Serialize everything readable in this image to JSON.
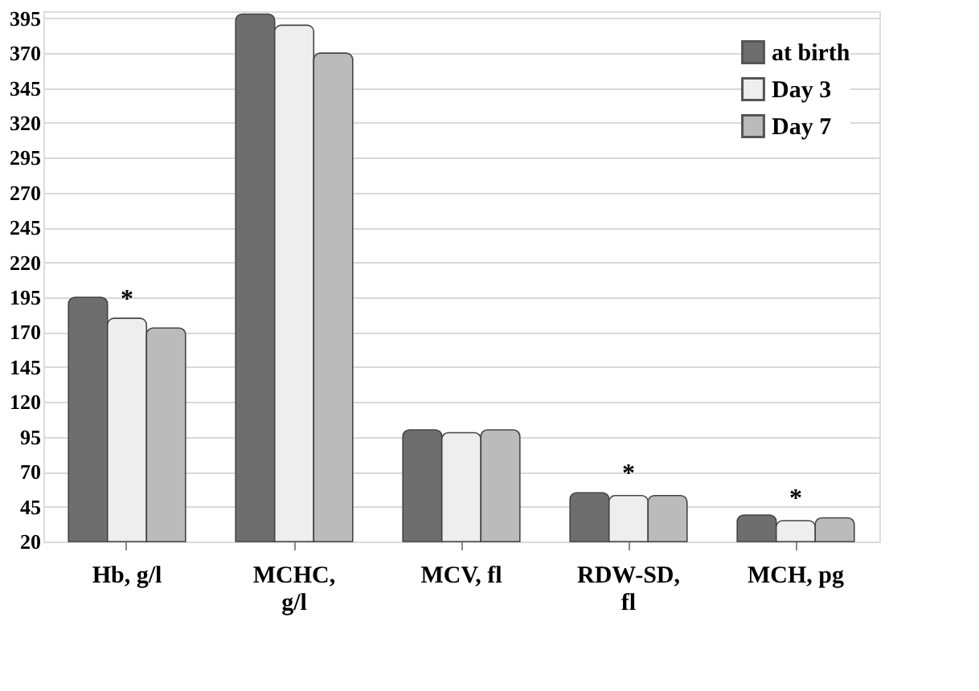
{
  "chart_data": {
    "type": "bar",
    "categories": [
      "Hb, g/l",
      "MCHC, g/l",
      "MCV, fl",
      "RDW-SD, fl",
      "MCH, pg"
    ],
    "series": [
      {
        "name": "at birth",
        "color": "#6e6e6e",
        "values": [
          195,
          398,
          100,
          55,
          39
        ]
      },
      {
        "name": "Day 3",
        "color": "#eeeeee",
        "values": [
          180,
          390,
          98,
          53,
          35
        ]
      },
      {
        "name": "Day 7",
        "color": "#bbbbbb",
        "values": [
          173,
          370,
          100,
          53,
          37
        ]
      }
    ],
    "ylim": [
      20,
      400
    ],
    "yticks": [
      20,
      45,
      70,
      95,
      120,
      145,
      170,
      195,
      220,
      245,
      270,
      295,
      320,
      345,
      370,
      395
    ],
    "grid": "y",
    "legend": "top right",
    "annotations": [
      {
        "text": "*",
        "x": "Hb, g/l",
        "y": 180
      },
      {
        "text": "*",
        "x": "RDW-SD, fl",
        "y": 55
      },
      {
        "text": "*",
        "x": "MCH, pg",
        "y": 37
      }
    ]
  }
}
